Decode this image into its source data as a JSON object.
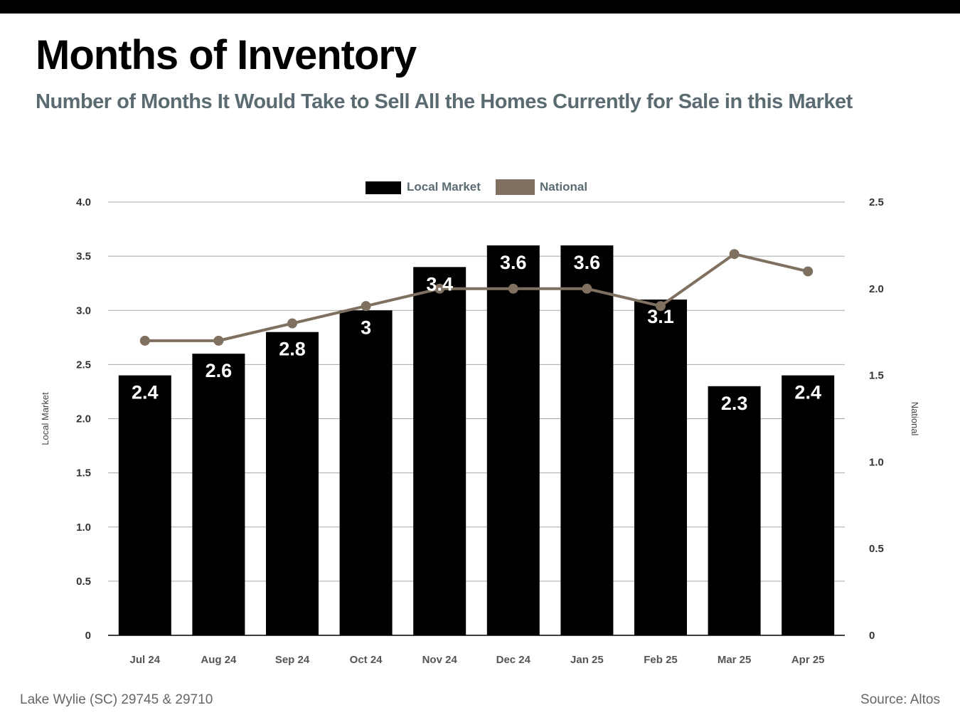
{
  "header": {
    "title": "Months of Inventory",
    "subtitle": "Number of Months It Would Take to Sell All the Homes Currently for Sale in this Market"
  },
  "footer": {
    "location": "Lake Wylie (SC) 29745 & 29710",
    "source": "Source: Altos"
  },
  "colors": {
    "local_bar": "#000000",
    "national_line": "#7f7060",
    "subtitle": "#5b6b72",
    "gridline": "#a9a9a9"
  },
  "chart_data": {
    "type": "bar",
    "categories": [
      "Jul 24",
      "Aug 24",
      "Sep 24",
      "Oct 24",
      "Nov 24",
      "Dec 24",
      "Jan 25",
      "Feb 25",
      "Mar 25",
      "Apr 25"
    ],
    "series": [
      {
        "name": "Local Market",
        "type": "bar",
        "axis": "left",
        "values": [
          2.4,
          2.6,
          2.8,
          3,
          3.4,
          3.6,
          3.6,
          3.1,
          2.3,
          2.4
        ],
        "data_labels": [
          "2.4",
          "2.6",
          "2.8",
          "3",
          "3.4",
          "3.6",
          "3.6",
          "3.1",
          "2.3",
          "2.4"
        ]
      },
      {
        "name": "National",
        "type": "line",
        "axis": "right",
        "values": [
          1.7,
          1.7,
          1.8,
          1.9,
          2.0,
          2.0,
          2.0,
          1.9,
          2.2,
          2.1
        ]
      }
    ],
    "ylabel": "Local Market",
    "ylabel_right": "National",
    "ylim": [
      0,
      4
    ],
    "ylim_right": [
      0,
      2.5
    ],
    "yticks": [
      "0",
      "0.5",
      "1.0",
      "1.5",
      "2.0",
      "2.5",
      "3.0",
      "3.5",
      "4.0"
    ],
    "yticks_right": [
      "0",
      "0.5",
      "1.0",
      "1.5",
      "2.0",
      "2.5"
    ],
    "grid": true,
    "legend_position": "top-center"
  }
}
